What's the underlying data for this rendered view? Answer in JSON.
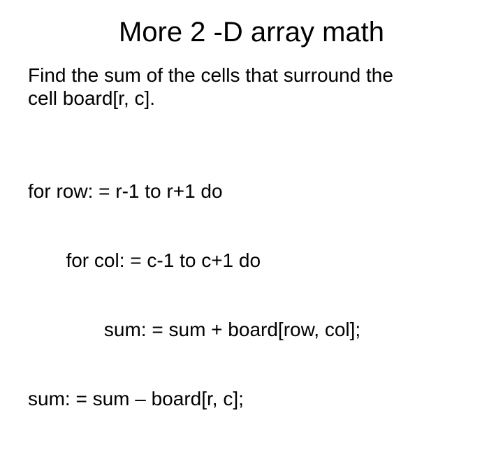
{
  "background_color": "#ffffff",
  "text_color": "#000000",
  "font_family": "Arial",
  "title": {
    "text": "More 2 -D array math",
    "fontsize": 40,
    "align": "center"
  },
  "paragraph": {
    "line1": "Find the sum of the cells that surround the",
    "line2": "cell board[r, c].",
    "fontsize": 28
  },
  "code": {
    "line1": "for row: = r-1 to r+1 do",
    "line2": "       for col: = c-1 to c+1 do",
    "line3": "              sum: = sum + board[row, col];",
    "line4": "sum: = sum – board[r, c];",
    "fontsize": 28
  }
}
